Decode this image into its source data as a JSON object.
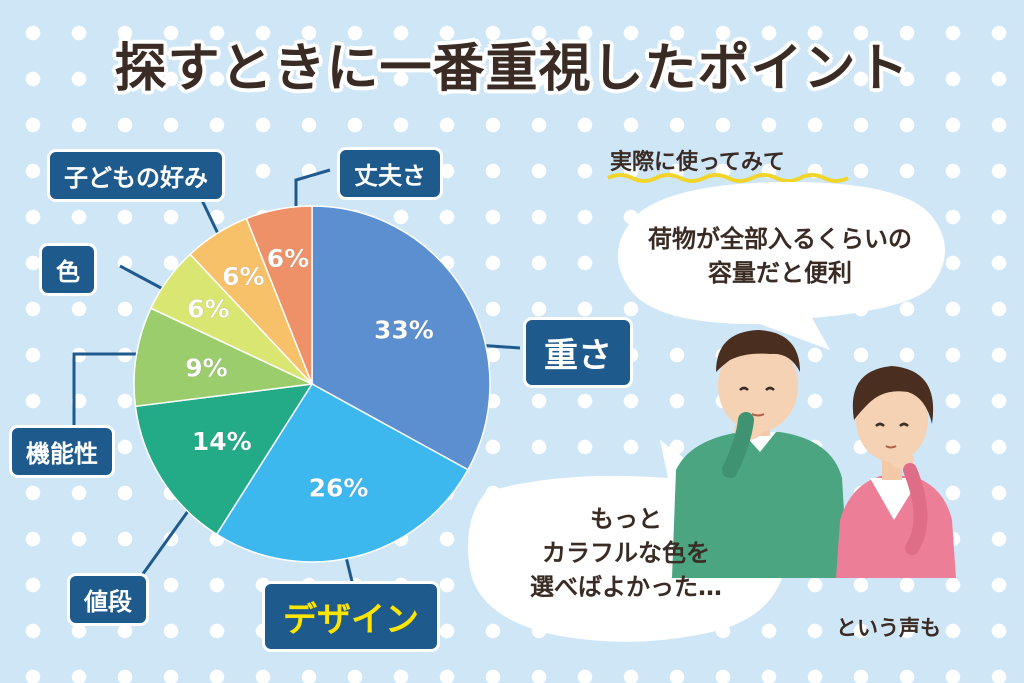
{
  "title": "探すときに一番重視したポイント",
  "chart_data": {
    "type": "pie",
    "slices": [
      {
        "label": "重さ",
        "value": 33,
        "value_label": "33%",
        "color": "#5b8fd0"
      },
      {
        "label": "デザイン",
        "value": 26,
        "value_label": "26%",
        "color": "#3cb8ef"
      },
      {
        "label": "値段",
        "value": 14,
        "value_label": "14%",
        "color": "#22ab86"
      },
      {
        "label": "機能性",
        "value": 9,
        "value_label": "9%",
        "color": "#9ccd6c"
      },
      {
        "label": "色",
        "value": 6,
        "value_label": "6%",
        "color": "#dae672"
      },
      {
        "label": "子どもの好み",
        "value": 6,
        "value_label": "6%",
        "color": "#f7c16a"
      },
      {
        "label": "丈夫さ",
        "value": 6,
        "value_label": "6%",
        "color": "#ee9168"
      }
    ]
  },
  "comments": {
    "heading": "実際に使ってみて",
    "bubble_top_line1": "荷物が全部入るくらいの",
    "bubble_top_line2": "容量だと便利",
    "bubble_bottom_line1": "もっと",
    "bubble_bottom_line2": "カラフルな色を",
    "bubble_bottom_line3": "選べばよかった…",
    "caption": "という声も"
  },
  "colors": {
    "label_box": "#1f5a8c",
    "highlight_text": "#ffe400",
    "man_shirt": "#4aa580",
    "woman_cardigan": "#ec7f97"
  }
}
